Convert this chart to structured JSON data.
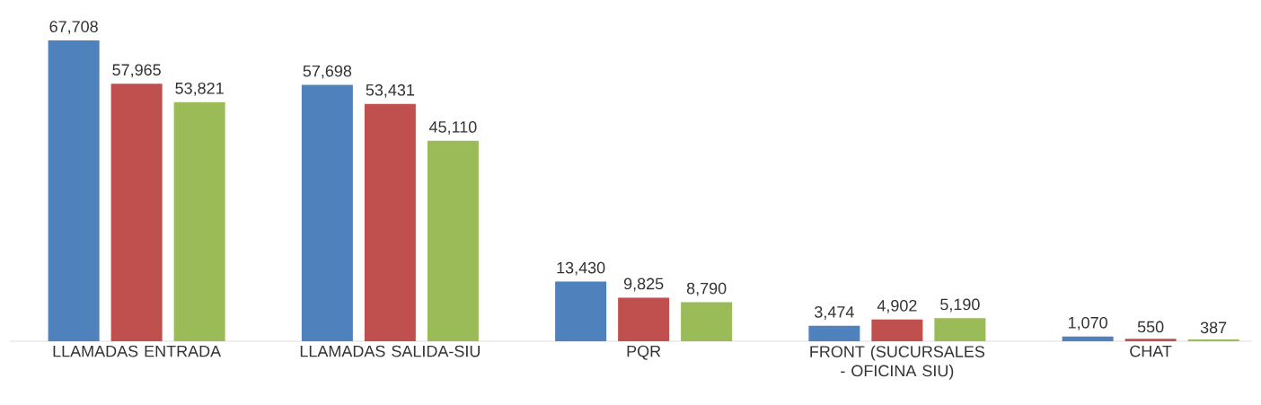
{
  "chart_data": {
    "type": "bar",
    "categories": [
      "LLAMADAS ENTRADA",
      "LLAMADAS SALIDA-SIU",
      "PQR",
      "FRONT (SUCURSALES - OFICINA SIU)",
      "CHAT"
    ],
    "series": [
      {
        "color": "#4f81bd",
        "values": [
          67708,
          57698,
          13430,
          3474,
          1070
        ],
        "value_labels": [
          "67,708",
          "57,698",
          "13,430",
          "3,474",
          "1,070"
        ]
      },
      {
        "color": "#c0504d",
        "values": [
          57965,
          53431,
          9825,
          4902,
          550
        ],
        "value_labels": [
          "57,965",
          "53,431",
          "9,825",
          "4,902",
          "550"
        ]
      },
      {
        "color": "#9bbb59",
        "values": [
          53821,
          45110,
          8790,
          5190,
          387
        ],
        "value_labels": [
          "53,821",
          "45,110",
          "8,790",
          "5,190",
          "387"
        ]
      }
    ]
  }
}
